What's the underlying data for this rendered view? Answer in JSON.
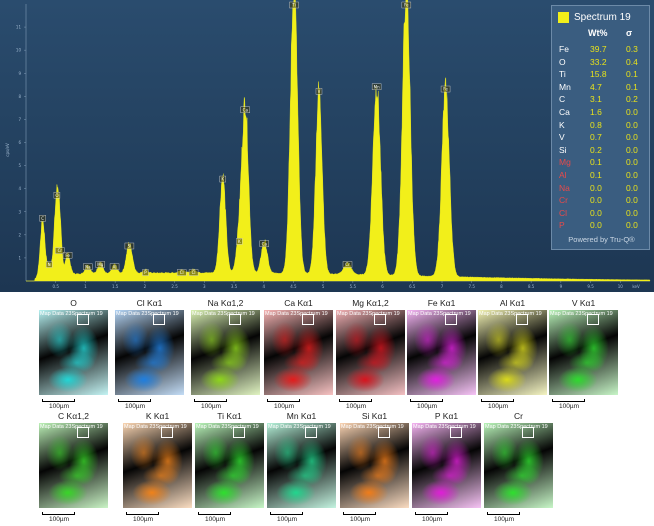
{
  "chart_data": {
    "type": "line",
    "title": "",
    "xlabel": "keV",
    "ylabel": "cps/eV",
    "xlim": [
      0,
      10.5
    ],
    "ylim": [
      0,
      12
    ],
    "x_ticks": [
      "0.5",
      "1",
      "1.5",
      "2",
      "2.5",
      "3",
      "3.5",
      "4",
      "4.5",
      "5",
      "5.5",
      "6",
      "6.5",
      "7",
      "7.5",
      "8",
      "8.5",
      "9",
      "9.5",
      "10"
    ],
    "y_ticks": [
      "1",
      "2",
      "3",
      "4",
      "5",
      "6",
      "7",
      "8",
      "9",
      "10",
      "11"
    ],
    "series": [
      {
        "color": "#f2ef1a"
      }
    ],
    "peaks": [
      {
        "label": "C",
        "x": 0.28,
        "y": 2.5,
        "w": 0.04
      },
      {
        "label": "N",
        "x": 0.39,
        "y": 0.5,
        "w": 0.03
      },
      {
        "label": "O",
        "x": 0.52,
        "y": 3.5,
        "w": 0.045
      },
      {
        "label": "Cr",
        "x": 0.57,
        "y": 1.1,
        "w": 0.03
      },
      {
        "label": "Fe",
        "x": 0.7,
        "y": 0.9,
        "w": 0.04
      },
      {
        "label": "Na",
        "x": 1.04,
        "y": 0.4,
        "w": 0.04
      },
      {
        "label": "Mg",
        "x": 1.25,
        "y": 0.5,
        "w": 0.04
      },
      {
        "label": "Al",
        "x": 1.49,
        "y": 0.4,
        "w": 0.04
      },
      {
        "label": "Si",
        "x": 1.74,
        "y": 1.3,
        "w": 0.05
      },
      {
        "label": "P",
        "x": 2.01,
        "y": 0.15,
        "w": 0.04
      },
      {
        "label": "Cl",
        "x": 2.62,
        "y": 0.15,
        "w": 0.04
      },
      {
        "label": "Cl",
        "x": 2.82,
        "y": 0.15,
        "w": 0.04
      },
      {
        "label": "K",
        "x": 3.31,
        "y": 4.2,
        "w": 0.05
      },
      {
        "label": "K",
        "x": 3.59,
        "y": 1.5,
        "w": 0.05
      },
      {
        "label": "Ca",
        "x": 3.69,
        "y": 7.2,
        "w": 0.055
      },
      {
        "label": "Ca",
        "x": 4.01,
        "y": 1.4,
        "w": 0.05
      },
      {
        "label": "Ti",
        "x": 4.51,
        "y": 12.5,
        "w": 0.06
      },
      {
        "label": "V",
        "x": 4.93,
        "y": 8.0,
        "w": 0.055
      },
      {
        "label": "Cr",
        "x": 5.41,
        "y": 0.5,
        "w": 0.06
      },
      {
        "label": "Mn",
        "x": 5.9,
        "y": 8.2,
        "w": 0.065
      },
      {
        "label": "Fe",
        "x": 6.4,
        "y": 12.5,
        "w": 0.065
      },
      {
        "label": "Fe",
        "x": 7.06,
        "y": 8.1,
        "w": 0.065
      }
    ],
    "legend": {
      "position": "top-right",
      "title": "Spectrum 19",
      "col_wt": "Wt%",
      "col_sigma": "σ",
      "rows": [
        {
          "el": "Fe",
          "wt": "39.7",
          "sigma": "0.3",
          "color": "#ffffff"
        },
        {
          "el": "O",
          "wt": "33.2",
          "sigma": "0.4",
          "color": "#ffffff"
        },
        {
          "el": "Ti",
          "wt": "15.8",
          "sigma": "0.1",
          "color": "#ffffff"
        },
        {
          "el": "Mn",
          "wt": "4.7",
          "sigma": "0.1",
          "color": "#ffffff"
        },
        {
          "el": "C",
          "wt": "3.1",
          "sigma": "0.2",
          "color": "#ffffff"
        },
        {
          "el": "Ca",
          "wt": "1.6",
          "sigma": "0.0",
          "color": "#ffffff"
        },
        {
          "el": "K",
          "wt": "0.8",
          "sigma": "0.0",
          "color": "#ffffff"
        },
        {
          "el": "V",
          "wt": "0.7",
          "sigma": "0.0",
          "color": "#ffffff"
        },
        {
          "el": "Si",
          "wt": "0.2",
          "sigma": "0.0",
          "color": "#ffffff"
        },
        {
          "el": "Mg",
          "wt": "0.1",
          "sigma": "0.0",
          "color": "#e84a4a"
        },
        {
          "el": "Al",
          "wt": "0.1",
          "sigma": "0.0",
          "color": "#e84a4a"
        },
        {
          "el": "Na",
          "wt": "0.0",
          "sigma": "0.0",
          "color": "#e84a4a"
        },
        {
          "el": "Cr",
          "wt": "0.0",
          "sigma": "0.0",
          "color": "#e84a4a"
        },
        {
          "el": "Cl",
          "wt": "0.0",
          "sigma": "0.0",
          "color": "#e84a4a"
        },
        {
          "el": "P",
          "wt": "0.0",
          "sigma": "0.0",
          "color": "#e84a4a"
        }
      ],
      "footer": "Powered by Tru-Q®"
    }
  },
  "maps": {
    "caption": "Map Data 23",
    "caption2": "Spectrum 19",
    "scale": "100µm",
    "row1": [
      {
        "label": "O",
        "color": "#22d6d6"
      },
      {
        "label": "Cl Kα1",
        "color": "#1f7fe0"
      },
      {
        "label": "Na Kα1,2",
        "color": "#8ed61a"
      },
      {
        "label": "Ca Kα1",
        "color": "#e41c1c"
      },
      {
        "label": "Mg Kα1,2",
        "color": "#d8141e"
      },
      {
        "label": "Fe Kα1",
        "color": "#e021e0"
      },
      {
        "label": "Al Kα1",
        "color": "#d9d91c"
      },
      {
        "label": "V Kα1",
        "color": "#2edb2e"
      }
    ],
    "row2": [
      {
        "label": "C Kα1,2",
        "color": "#38d628"
      },
      {
        "label": "K Kα1",
        "color": "#f0821a"
      },
      {
        "label": "Ti Kα1",
        "color": "#2ee02e"
      },
      {
        "label": "Mn Kα1",
        "color": "#22d68e"
      },
      {
        "label": "Si Kα1",
        "color": "#f07d1a"
      },
      {
        "label": "P Kα1",
        "color": "#e01ed8"
      },
      {
        "label": "Cr",
        "color": "#2ee02e"
      }
    ]
  }
}
